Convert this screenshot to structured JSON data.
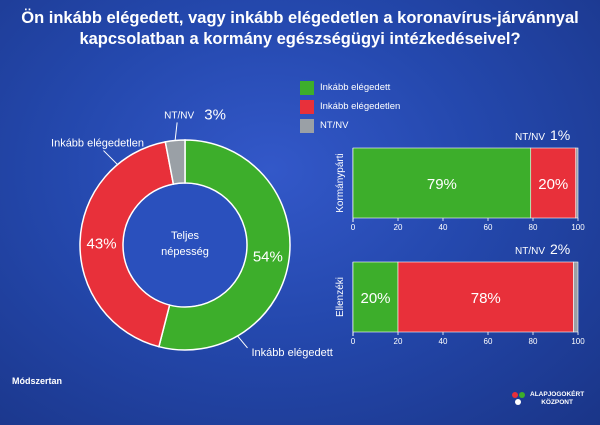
{
  "title_line1": "Ön inkább elégedett, vagy inkább elégedetlen a koronavírus-járvánnyal",
  "title_line2": "kapcsolatban a kormány egészségügyi intézkedéseivel?",
  "colors": {
    "green": "#3dae2b",
    "red": "#e8303a",
    "gray": "#9aa0a6"
  },
  "legend": [
    {
      "label": "Inkább elégedett",
      "color": "#3dae2b"
    },
    {
      "label": "Inkább elégedetlen",
      "color": "#e8303a"
    },
    {
      "label": "NT/NV",
      "color": "#9aa0a6"
    }
  ],
  "chart_data": [
    {
      "type": "pie",
      "center_label_line1": "Teljes",
      "center_label_line2": "népesség",
      "categories": [
        "Inkább elégedett",
        "Inkább elégedetlen",
        "NT/NV"
      ],
      "values": [
        54,
        43,
        3
      ],
      "value_labels": [
        "54%",
        "43%",
        "3%"
      ]
    },
    {
      "type": "bar",
      "orientation": "horizontal",
      "stacked": true,
      "category": "Kormánypárti",
      "series": [
        {
          "name": "Inkább elégedett",
          "values": [
            79
          ]
        },
        {
          "name": "Inkább elégedetlen",
          "values": [
            20
          ]
        },
        {
          "name": "NT/NV",
          "values": [
            1
          ]
        }
      ],
      "value_labels": [
        "79%",
        "20%",
        "1%"
      ],
      "outside_label_prefix": "NT/NV",
      "xlim": [
        0,
        100
      ],
      "xticks": [
        "0",
        "20",
        "40",
        "60",
        "80",
        "100"
      ]
    },
    {
      "type": "bar",
      "orientation": "horizontal",
      "stacked": true,
      "category": "Ellenzéki",
      "series": [
        {
          "name": "Inkább elégedett",
          "values": [
            20
          ]
        },
        {
          "name": "Inkább elégedetlen",
          "values": [
            78
          ]
        },
        {
          "name": "NT/NV",
          "values": [
            2
          ]
        }
      ],
      "value_labels": [
        "20%",
        "78%",
        "2%"
      ],
      "outside_label_prefix": "NT/NV",
      "xlim": [
        0,
        100
      ],
      "xticks": [
        "0",
        "20",
        "40",
        "60",
        "80",
        "100"
      ]
    }
  ],
  "footer": {
    "title": "Módszertan",
    "logo_line1": "ALAPJOGOKÉRT",
    "logo_line2": "KÖZPONT"
  }
}
